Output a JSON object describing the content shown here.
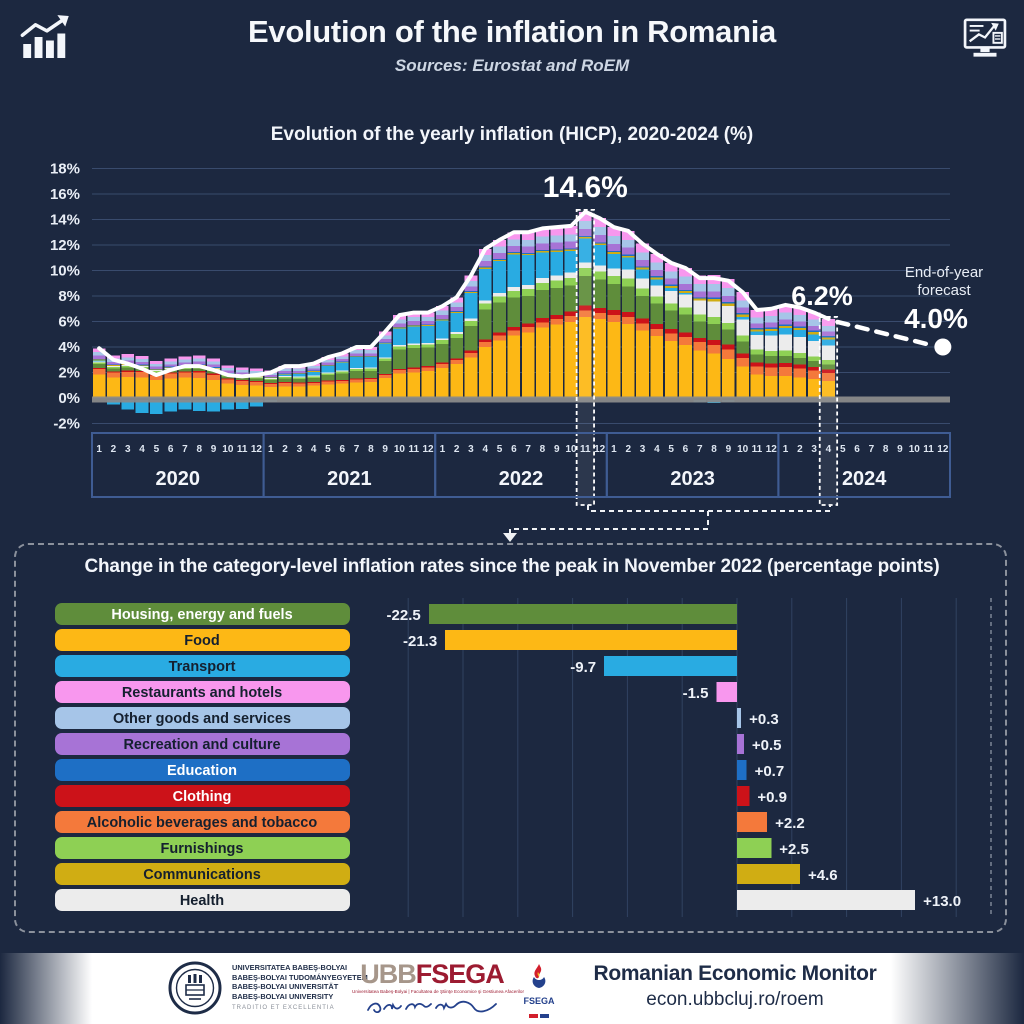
{
  "header": {
    "title": "Evolution of the inflation in Romania",
    "subtitle": "Sources: Eurostat and RoEM",
    "left_icon": "bar-chart-trend-icon",
    "right_icon": "monitor-report-icon"
  },
  "colors": {
    "background": "#1c2840",
    "grid": "rgba(125,160,215,0.30)",
    "year_box_border": "#3f5c93",
    "baseline_gray": "#8a8a8a",
    "total_line": "#ffffff",
    "panel_border": "#8b919c"
  },
  "chart_data": [
    {
      "type": "bar",
      "stacked": true,
      "title": "Evolution of the yearly inflation (HICP), 2020-2024 (%)",
      "ylabel": "",
      "ylim": [
        -2,
        18
      ],
      "ytick_step": 2,
      "years": [
        "2020",
        "2021",
        "2022",
        "2023",
        "2024"
      ],
      "month_ticks": [
        "1",
        "2",
        "3",
        "4",
        "5",
        "6",
        "7",
        "8",
        "9",
        "10",
        "11",
        "12"
      ],
      "n_month_slots": 60,
      "n_months_with_data": 52,
      "totals": [
        3.9,
        3.0,
        2.7,
        2.3,
        1.8,
        2.2,
        2.5,
        2.5,
        2.2,
        1.8,
        1.7,
        1.8,
        2.0,
        2.5,
        2.5,
        2.7,
        3.2,
        3.5,
        4.0,
        4.0,
        5.2,
        6.5,
        6.7,
        6.7,
        7.2,
        7.9,
        9.6,
        11.7,
        12.4,
        13.0,
        13.0,
        13.3,
        13.4,
        13.5,
        14.6,
        14.1,
        13.4,
        13.1,
        12.1,
        11.3,
        10.6,
        10.2,
        9.4,
        9.4,
        9.2,
        8.3,
        6.9,
        7.0,
        7.3,
        7.1,
        6.7,
        6.2
      ],
      "series": [
        {
          "name": "Food",
          "color": "#fdb815",
          "values": [
            2.2,
            2.1,
            2.0,
            2.0,
            1.9,
            2.0,
            2.0,
            1.9,
            1.8,
            1.6,
            1.5,
            1.5,
            1.4,
            1.4,
            1.5,
            1.6,
            1.7,
            1.8,
            1.9,
            2.0,
            2.2,
            2.5,
            2.7,
            2.9,
            3.2,
            3.5,
            4.1,
            4.8,
            5.4,
            5.9,
            6.2,
            6.5,
            6.8,
            7.0,
            7.2,
            7.0,
            6.7,
            6.4,
            5.9,
            5.4,
            4.9,
            4.4,
            3.9,
            3.4,
            2.9,
            2.5,
            2.1,
            1.9,
            1.8,
            1.7,
            1.6,
            1.5
          ]
        },
        {
          "name": "Alcoholic beverages and tobacco",
          "color": "#f4793b",
          "values": [
            0.5,
            0.5,
            0.5,
            0.5,
            0.5,
            0.5,
            0.5,
            0.5,
            0.5,
            0.45,
            0.45,
            0.4,
            0.4,
            0.38,
            0.36,
            0.35,
            0.35,
            0.35,
            0.35,
            0.35,
            0.36,
            0.38,
            0.4,
            0.4,
            0.4,
            0.42,
            0.44,
            0.46,
            0.48,
            0.5,
            0.5,
            0.5,
            0.52,
            0.54,
            0.55,
            0.56,
            0.58,
            0.6,
            0.62,
            0.64,
            0.66,
            0.68,
            0.68,
            0.68,
            0.7,
            0.7,
            0.72,
            0.72,
            0.74,
            0.74,
            0.72,
            0.7
          ]
        },
        {
          "name": "Clothing",
          "color": "#cc1219",
          "values": [
            0.12,
            0.12,
            0.12,
            0.12,
            0.12,
            0.12,
            0.12,
            0.12,
            0.12,
            0.12,
            0.12,
            0.12,
            0.12,
            0.12,
            0.12,
            0.12,
            0.12,
            0.12,
            0.12,
            0.12,
            0.12,
            0.12,
            0.12,
            0.12,
            0.15,
            0.18,
            0.22,
            0.26,
            0.3,
            0.33,
            0.36,
            0.38,
            0.4,
            0.42,
            0.45,
            0.45,
            0.45,
            0.44,
            0.42,
            0.4,
            0.4,
            0.38,
            0.36,
            0.36,
            0.35,
            0.34,
            0.33,
            0.32,
            0.32,
            0.3,
            0.3,
            0.3
          ]
        },
        {
          "name": "Housing, energy and fuels",
          "color": "#5f8d3b",
          "values": [
            0.35,
            0.3,
            0.28,
            0.22,
            0.2,
            0.2,
            0.22,
            0.24,
            0.24,
            0.25,
            0.26,
            0.3,
            0.35,
            0.45,
            0.5,
            0.55,
            0.7,
            0.8,
            0.9,
            0.9,
            1.4,
            2.0,
            2.1,
            2.0,
            2.0,
            2.1,
            2.5,
            2.8,
            2.8,
            2.8,
            2.6,
            2.6,
            2.5,
            2.4,
            2.6,
            2.5,
            2.3,
            2.2,
            2.0,
            1.8,
            1.6,
            1.5,
            1.35,
            1.25,
            1.1,
            0.95,
            0.7,
            0.65,
            0.6,
            0.55,
            0.5,
            0.45
          ]
        },
        {
          "name": "Furnishings",
          "color": "#8ed054",
          "values": [
            0.15,
            0.15,
            0.15,
            0.15,
            0.15,
            0.15,
            0.15,
            0.15,
            0.15,
            0.15,
            0.15,
            0.15,
            0.15,
            0.16,
            0.17,
            0.18,
            0.2,
            0.22,
            0.24,
            0.26,
            0.28,
            0.3,
            0.32,
            0.34,
            0.38,
            0.42,
            0.48,
            0.54,
            0.58,
            0.62,
            0.64,
            0.66,
            0.68,
            0.7,
            0.72,
            0.72,
            0.7,
            0.68,
            0.65,
            0.62,
            0.6,
            0.58,
            0.55,
            0.52,
            0.5,
            0.48,
            0.46,
            0.44,
            0.42,
            0.4,
            0.38,
            0.36
          ]
        },
        {
          "name": "Health",
          "color": "#ececec",
          "values": [
            0.1,
            0.1,
            0.1,
            0.1,
            0.1,
            0.1,
            0.1,
            0.1,
            0.1,
            0.1,
            0.1,
            0.1,
            0.1,
            0.1,
            0.1,
            0.1,
            0.12,
            0.12,
            0.12,
            0.12,
            0.14,
            0.14,
            0.16,
            0.16,
            0.18,
            0.2,
            0.24,
            0.28,
            0.32,
            0.36,
            0.4,
            0.44,
            0.46,
            0.48,
            0.5,
            0.55,
            0.65,
            0.75,
            0.85,
            0.95,
            1.05,
            1.1,
            1.15,
            1.2,
            1.25,
            1.3,
            1.3,
            1.3,
            1.35,
            1.35,
            1.3,
            1.3
          ]
        },
        {
          "name": "Transport",
          "color": "#29abe2",
          "values": [
            0.1,
            -0.35,
            -0.75,
            -1.0,
            -1.1,
            -0.9,
            -0.75,
            -0.85,
            -0.9,
            -0.75,
            -0.7,
            -0.5,
            -0.15,
            0.2,
            0.35,
            0.5,
            0.8,
            1.0,
            1.3,
            1.3,
            1.5,
            1.7,
            1.8,
            1.8,
            1.9,
            2.0,
            2.6,
            3.0,
            3.0,
            3.1,
            2.8,
            2.4,
            2.2,
            2.0,
            2.1,
            1.8,
            1.3,
            1.05,
            0.8,
            0.55,
            0.3,
            0.1,
            -0.2,
            -0.25,
            -0.15,
            0.2,
            0.3,
            0.4,
            0.5,
            0.55,
            0.55,
            0.5
          ]
        },
        {
          "name": "Communications",
          "color": "#d0ad13",
          "values": [
            0.08,
            0.08,
            0.08,
            0.08,
            0.08,
            0.08,
            0.08,
            0.08,
            0.08,
            0.08,
            0.08,
            0.08,
            0.08,
            0.08,
            0.08,
            0.09,
            0.09,
            0.09,
            0.1,
            0.1,
            0.1,
            0.1,
            0.1,
            0.1,
            0.1,
            0.11,
            0.11,
            0.12,
            0.12,
            0.13,
            0.13,
            0.13,
            0.14,
            0.14,
            0.14,
            0.14,
            0.15,
            0.15,
            0.16,
            0.16,
            0.16,
            0.17,
            0.17,
            0.17,
            0.18,
            0.18,
            0.18,
            0.18,
            0.18,
            0.18,
            0.18,
            0.18
          ]
        },
        {
          "name": "Education",
          "color": "#1e6fc5",
          "values": [
            0.06,
            0.06,
            0.06,
            0.06,
            0.06,
            0.06,
            0.06,
            0.06,
            0.06,
            0.06,
            0.06,
            0.06,
            0.06,
            0.06,
            0.06,
            0.06,
            0.06,
            0.06,
            0.06,
            0.06,
            0.06,
            0.06,
            0.06,
            0.06,
            0.07,
            0.07,
            0.07,
            0.08,
            0.08,
            0.08,
            0.08,
            0.08,
            0.09,
            0.09,
            0.1,
            0.1,
            0.1,
            0.1,
            0.1,
            0.11,
            0.11,
            0.11,
            0.11,
            0.11,
            0.12,
            0.12,
            0.12,
            0.12,
            0.12,
            0.12,
            0.12,
            0.12
          ]
        },
        {
          "name": "Recreation and culture",
          "color": "#a773d6",
          "values": [
            0.3,
            0.28,
            0.26,
            0.25,
            0.24,
            0.24,
            0.25,
            0.26,
            0.26,
            0.25,
            0.24,
            0.24,
            0.24,
            0.25,
            0.26,
            0.27,
            0.28,
            0.3,
            0.32,
            0.33,
            0.35,
            0.38,
            0.4,
            0.4,
            0.42,
            0.44,
            0.48,
            0.52,
            0.55,
            0.58,
            0.6,
            0.6,
            0.62,
            0.62,
            0.64,
            0.64,
            0.62,
            0.6,
            0.58,
            0.55,
            0.52,
            0.5,
            0.48,
            0.46,
            0.45,
            0.44,
            0.42,
            0.42,
            0.42,
            0.4,
            0.4,
            0.4
          ]
        },
        {
          "name": "Other goods and services",
          "color": "#a6c5e8",
          "values": [
            0.35,
            0.33,
            0.32,
            0.3,
            0.3,
            0.3,
            0.3,
            0.3,
            0.3,
            0.3,
            0.3,
            0.3,
            0.3,
            0.3,
            0.32,
            0.33,
            0.35,
            0.36,
            0.38,
            0.38,
            0.4,
            0.42,
            0.44,
            0.44,
            0.46,
            0.48,
            0.52,
            0.56,
            0.6,
            0.62,
            0.64,
            0.66,
            0.68,
            0.68,
            0.7,
            0.7,
            0.68,
            0.66,
            0.65,
            0.64,
            0.62,
            0.6,
            0.6,
            0.58,
            0.58,
            0.56,
            0.55,
            0.55,
            0.55,
            0.54,
            0.52,
            0.5
          ]
        },
        {
          "name": "Restaurants and hotels",
          "color": "#f897ee",
          "values": [
            0.35,
            0.33,
            0.32,
            0.3,
            0.3,
            0.3,
            0.3,
            0.3,
            0.3,
            0.28,
            0.28,
            0.28,
            0.28,
            0.3,
            0.3,
            0.32,
            0.34,
            0.36,
            0.38,
            0.4,
            0.42,
            0.44,
            0.46,
            0.46,
            0.48,
            0.52,
            0.56,
            0.6,
            0.64,
            0.68,
            0.72,
            0.74,
            0.76,
            0.78,
            0.8,
            0.8,
            0.8,
            0.78,
            0.76,
            0.75,
            0.74,
            0.72,
            0.7,
            0.7,
            0.68,
            0.66,
            0.65,
            0.64,
            0.64,
            0.62,
            0.6,
            0.6
          ]
        }
      ],
      "annotations": {
        "peak_label": "14.6%",
        "peak_month_index": 34,
        "latest_label": "6.2%",
        "latest_month_index": 51,
        "forecast_caption_line1": "End-of-year",
        "forecast_caption_line2": "forecast",
        "forecast_label": "4.0%",
        "forecast_value": 4.0,
        "forecast_month_index": 59.5
      }
    },
    {
      "type": "bar",
      "orientation": "horizontal",
      "title": "Change in the category-level inflation rates since the peak in November 2022 (percentage points)",
      "categories": [
        "Housing, energy and fuels",
        "Food",
        "Transport",
        "Restaurants and hotels",
        "Other goods and services",
        "Recreation and culture",
        "Education",
        "Clothing",
        "Alcoholic beverages and tobacco",
        "Furnishings",
        "Communications",
        "Health"
      ],
      "values": [
        -22.5,
        -21.3,
        -9.7,
        -1.5,
        0.3,
        0.5,
        0.7,
        0.9,
        2.2,
        2.5,
        4.6,
        13.0
      ],
      "value_labels": [
        "-22.5",
        "-21.3",
        "-9.7",
        "-1.5",
        "+0.3",
        "+0.5",
        "+0.7",
        "+0.9",
        "+2.2",
        "+2.5",
        "+4.6",
        "+13.0"
      ],
      "colors": [
        "#5f8d3b",
        "#fdb815",
        "#29abe2",
        "#f897ee",
        "#a6c5e8",
        "#a773d6",
        "#1e6fc5",
        "#cc1219",
        "#f4793b",
        "#8ed054",
        "#d0ad13",
        "#ececec"
      ],
      "label_text_colors": [
        "#ffffff",
        "#15202f",
        "#15202f",
        "#15202f",
        "#15202f",
        "#15202f",
        "#ffffff",
        "#ffffff",
        "#15202f",
        "#15202f",
        "#15202f",
        "#15202f"
      ],
      "xlim": [
        -24,
        16
      ],
      "grid_step": 4
    }
  ],
  "footer": {
    "university": {
      "lines": [
        "UNIVERSITATEA BABEŞ-BOLYAI",
        "BABEŞ-BOLYAI TUDOMÁNYEGYETEM",
        "BABEŞ-BOLYAI UNIVERSITÄT",
        "BABEŞ-BOLYAI UNIVERSITY"
      ],
      "motto": "TRADITIO ET EXCELLENTIA"
    },
    "ubb_logo": {
      "part1": "UBB",
      "part2": "FSEGA",
      "caption": "Universitatea Babeş-Bolyai | Facultatea de Ştiinţe Economice şi Gestiunea Afacerilor"
    },
    "emblem_name": "FSEGA",
    "monitor_title": "Romanian Economic Monitor",
    "monitor_url": "econ.ubbcluj.ro/roem"
  }
}
